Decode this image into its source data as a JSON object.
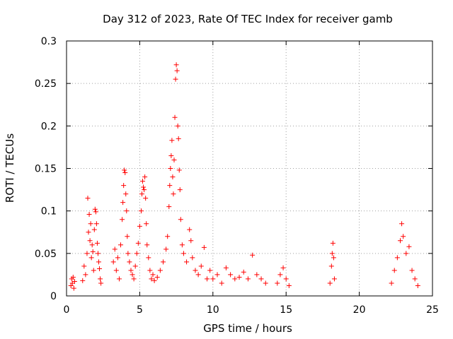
{
  "chart_data": {
    "type": "scatter",
    "title": "Day 312 of 2023, Rate Of TEC Index for receiver gamb",
    "xlabel": "GPS time / hours",
    "ylabel": "ROTI / TECUs",
    "xlim": [
      0,
      25
    ],
    "ylim": [
      0,
      0.3
    ],
    "x_ticks": [
      0,
      5,
      10,
      15,
      20,
      25
    ],
    "x_tick_labels": [
      "0",
      "5",
      "10",
      "15",
      "20",
      "25"
    ],
    "y_ticks": [
      0,
      0.05,
      0.1,
      0.15,
      0.2,
      0.25,
      0.3
    ],
    "y_tick_labels": [
      "0",
      "0.05",
      "0.1",
      "0.15",
      "0.2",
      "0.25",
      "0.3"
    ],
    "grid": true,
    "legend": "none",
    "marker": "+",
    "color": "#ff0000",
    "series": [
      {
        "points": [
          [
            0.3,
            0.012
          ],
          [
            0.35,
            0.02
          ],
          [
            0.4,
            0.015
          ],
          [
            0.45,
            0.022
          ],
          [
            0.5,
            0.009
          ],
          [
            0.55,
            0.017
          ],
          [
            1.1,
            0.018
          ],
          [
            1.2,
            0.035
          ],
          [
            1.3,
            0.025
          ],
          [
            1.4,
            0.05
          ],
          [
            1.45,
            0.115
          ],
          [
            1.5,
            0.075
          ],
          [
            1.55,
            0.096
          ],
          [
            1.6,
            0.065
          ],
          [
            1.65,
            0.085
          ],
          [
            1.7,
            0.045
          ],
          [
            1.75,
            0.06
          ],
          [
            1.8,
            0.052
          ],
          [
            1.85,
            0.03
          ],
          [
            1.9,
            0.078
          ],
          [
            1.95,
            0.102
          ],
          [
            2.0,
            0.099
          ],
          [
            2.05,
            0.085
          ],
          [
            2.1,
            0.062
          ],
          [
            2.15,
            0.05
          ],
          [
            2.2,
            0.04
          ],
          [
            2.25,
            0.032
          ],
          [
            2.3,
            0.02
          ],
          [
            2.35,
            0.015
          ],
          [
            3.2,
            0.04
          ],
          [
            3.3,
            0.055
          ],
          [
            3.4,
            0.03
          ],
          [
            3.5,
            0.045
          ],
          [
            3.6,
            0.02
          ],
          [
            3.7,
            0.06
          ],
          [
            3.8,
            0.09
          ],
          [
            3.85,
            0.11
          ],
          [
            3.9,
            0.13
          ],
          [
            3.95,
            0.148
          ],
          [
            4.0,
            0.145
          ],
          [
            4.05,
            0.12
          ],
          [
            4.1,
            0.1
          ],
          [
            4.15,
            0.07
          ],
          [
            4.2,
            0.05
          ],
          [
            4.3,
            0.04
          ],
          [
            4.4,
            0.03
          ],
          [
            4.5,
            0.025
          ],
          [
            4.6,
            0.02
          ],
          [
            4.7,
            0.035
          ],
          [
            4.8,
            0.05
          ],
          [
            4.9,
            0.062
          ],
          [
            5.0,
            0.082
          ],
          [
            5.1,
            0.1
          ],
          [
            5.15,
            0.12
          ],
          [
            5.2,
            0.135
          ],
          [
            5.25,
            0.128
          ],
          [
            5.3,
            0.125
          ],
          [
            5.35,
            0.14
          ],
          [
            5.4,
            0.115
          ],
          [
            5.45,
            0.085
          ],
          [
            5.5,
            0.06
          ],
          [
            5.6,
            0.045
          ],
          [
            5.7,
            0.03
          ],
          [
            5.8,
            0.02
          ],
          [
            5.9,
            0.025
          ],
          [
            6.0,
            0.018
          ],
          [
            6.2,
            0.022
          ],
          [
            6.4,
            0.03
          ],
          [
            6.6,
            0.04
          ],
          [
            6.8,
            0.055
          ],
          [
            6.9,
            0.07
          ],
          [
            7.0,
            0.105
          ],
          [
            7.05,
            0.13
          ],
          [
            7.1,
            0.15
          ],
          [
            7.15,
            0.165
          ],
          [
            7.2,
            0.183
          ],
          [
            7.25,
            0.14
          ],
          [
            7.3,
            0.12
          ],
          [
            7.35,
            0.16
          ],
          [
            7.4,
            0.21
          ],
          [
            7.45,
            0.255
          ],
          [
            7.5,
            0.272
          ],
          [
            7.55,
            0.265
          ],
          [
            7.6,
            0.2
          ],
          [
            7.65,
            0.185
          ],
          [
            7.7,
            0.148
          ],
          [
            7.75,
            0.125
          ],
          [
            7.8,
            0.09
          ],
          [
            7.9,
            0.06
          ],
          [
            8.0,
            0.05
          ],
          [
            8.2,
            0.04
          ],
          [
            8.4,
            0.078
          ],
          [
            8.5,
            0.065
          ],
          [
            8.6,
            0.045
          ],
          [
            8.8,
            0.03
          ],
          [
            9.0,
            0.025
          ],
          [
            9.2,
            0.035
          ],
          [
            9.4,
            0.057
          ],
          [
            9.6,
            0.02
          ],
          [
            9.8,
            0.03
          ],
          [
            10.0,
            0.02
          ],
          [
            10.3,
            0.025
          ],
          [
            10.6,
            0.015
          ],
          [
            10.9,
            0.033
          ],
          [
            11.2,
            0.025
          ],
          [
            11.5,
            0.02
          ],
          [
            11.8,
            0.022
          ],
          [
            12.1,
            0.028
          ],
          [
            12.4,
            0.02
          ],
          [
            12.7,
            0.048
          ],
          [
            13.0,
            0.025
          ],
          [
            13.3,
            0.02
          ],
          [
            13.6,
            0.015
          ],
          [
            14.4,
            0.015
          ],
          [
            14.6,
            0.025
          ],
          [
            14.8,
            0.033
          ],
          [
            15.0,
            0.02
          ],
          [
            15.2,
            0.012
          ],
          [
            18.0,
            0.015
          ],
          [
            18.1,
            0.035
          ],
          [
            18.15,
            0.05
          ],
          [
            18.2,
            0.062
          ],
          [
            18.25,
            0.045
          ],
          [
            18.3,
            0.02
          ],
          [
            22.2,
            0.015
          ],
          [
            22.4,
            0.03
          ],
          [
            22.6,
            0.045
          ],
          [
            22.8,
            0.065
          ],
          [
            22.9,
            0.085
          ],
          [
            23.0,
            0.07
          ],
          [
            23.2,
            0.05
          ],
          [
            23.4,
            0.058
          ],
          [
            23.6,
            0.03
          ],
          [
            23.8,
            0.02
          ],
          [
            24.0,
            0.012
          ]
        ]
      }
    ]
  }
}
